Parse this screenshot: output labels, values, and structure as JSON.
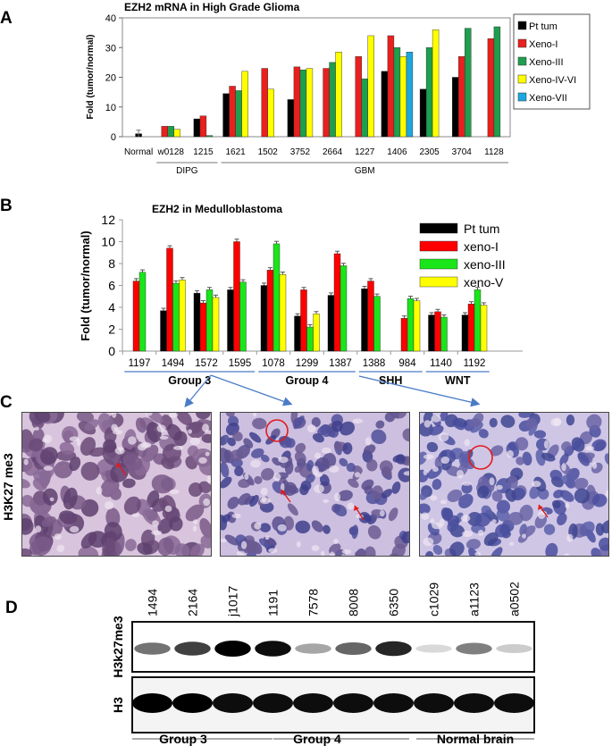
{
  "panels": {
    "a": "A",
    "b": "B",
    "c": "C",
    "d": "D"
  },
  "chart_data": [
    {
      "type": "bar",
      "title": "EZH2 mRNA in High Grade Glioma",
      "ylabel": "Fold (tumor/normal)",
      "ylim": [
        0,
        40
      ],
      "yticks": [
        0,
        10,
        20,
        30,
        40
      ],
      "categories": [
        "Normal",
        "w0128",
        "1215",
        "1621",
        "1502",
        "3752",
        "2664",
        "1227",
        "1406",
        "2305",
        "3704",
        "1128"
      ],
      "groups": [
        {
          "label": "DIPG",
          "from": 1,
          "to": 2
        },
        {
          "label": "GBM",
          "from": 3,
          "to": 11
        }
      ],
      "legend_position": "right",
      "series": [
        {
          "name": "Pt tum",
          "color": "#000000",
          "values": [
            1.0,
            null,
            6.0,
            14.5,
            null,
            12.5,
            null,
            null,
            22.0,
            16.0,
            20.0,
            null
          ]
        },
        {
          "name": "Xeno-I",
          "color": "#e8201e",
          "values": [
            null,
            3.5,
            7.0,
            17.0,
            23.0,
            23.5,
            23.0,
            27.0,
            34.0,
            null,
            27.0,
            33.0
          ]
        },
        {
          "name": "Xeno-III",
          "color": "#1f9e4e",
          "values": [
            null,
            3.5,
            0.4,
            15.5,
            null,
            22.5,
            25.0,
            19.5,
            30.0,
            30.0,
            36.5,
            37.0
          ]
        },
        {
          "name": "Xeno-IV-VI",
          "color": "#ffff00",
          "values": [
            null,
            2.5,
            null,
            22.0,
            16.0,
            23.0,
            28.5,
            34.0,
            27.0,
            36.0,
            null,
            null
          ]
        },
        {
          "name": "Xeno-VII",
          "color": "#1ba7e0",
          "values": [
            null,
            null,
            null,
            null,
            null,
            null,
            null,
            null,
            28.5,
            null,
            null,
            null
          ]
        }
      ]
    },
    {
      "type": "bar",
      "title": "EZH2 in Medulloblastoma",
      "ylabel": "Fold (tumor/normal)",
      "ylim": [
        0,
        12
      ],
      "yticks": [
        0,
        2,
        4,
        6,
        8,
        10,
        12
      ],
      "categories": [
        "1197",
        "1494",
        "1572",
        "1595",
        "1078",
        "1299",
        "1387",
        "1388",
        "984",
        "1140",
        "1192"
      ],
      "groups": [
        {
          "label": "Group 3",
          "from": 0,
          "to": 3
        },
        {
          "label": "Group 4",
          "from": 4,
          "to": 6
        },
        {
          "label": "SHH",
          "from": 7,
          "to": 8
        },
        {
          "label": "WNT",
          "from": 9,
          "to": 10
        }
      ],
      "legend_position": "top-right",
      "series": [
        {
          "name": "Pt tum",
          "color": "#000000",
          "values": [
            null,
            3.7,
            5.3,
            5.6,
            6.0,
            3.2,
            5.1,
            5.7,
            null,
            3.3,
            3.3
          ]
        },
        {
          "name": "xeno-I",
          "color": "#ff0000",
          "values": [
            6.4,
            9.4,
            4.4,
            10.0,
            7.4,
            5.6,
            8.9,
            6.4,
            3.0,
            3.6,
            4.3
          ]
        },
        {
          "name": "xeno-III",
          "color": "#19e619",
          "values": [
            7.2,
            6.2,
            5.6,
            6.3,
            9.8,
            2.2,
            7.8,
            5.0,
            4.8,
            3.1,
            5.6
          ]
        },
        {
          "name": "xeno-V",
          "color": "#ffff00",
          "values": [
            null,
            6.5,
            4.9,
            null,
            7.0,
            3.4,
            null,
            null,
            4.6,
            null,
            4.2
          ]
        }
      ]
    }
  ],
  "panel_c": {
    "ylabel": "H3K27 me3",
    "images": [
      "group-3-tissue",
      "group-4-tissue",
      "shh-tissue"
    ]
  },
  "panel_d": {
    "lanes": [
      "1494",
      "2164",
      "j1017",
      "1191",
      "7578",
      "8008",
      "6350",
      "c1029",
      "a1123",
      "a0502"
    ],
    "row_labels": [
      "H3k27me3",
      "H3"
    ],
    "groups": [
      "Group 3",
      "Group 4",
      "Normal brain"
    ],
    "h3k27me3_intensity": [
      0.55,
      0.75,
      1.0,
      0.95,
      0.35,
      0.6,
      0.85,
      0.12,
      0.5,
      0.2
    ],
    "h3_intensity": [
      1.0,
      1.0,
      0.95,
      0.95,
      0.95,
      0.95,
      0.95,
      0.95,
      0.95,
      0.95
    ]
  }
}
